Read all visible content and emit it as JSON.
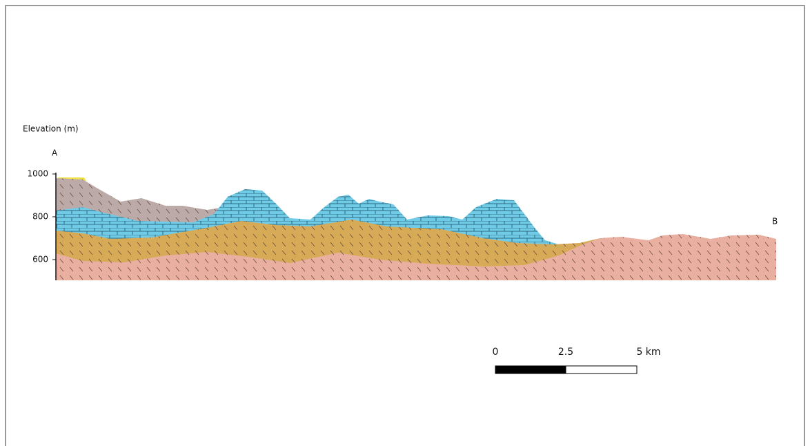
{
  "axis": {
    "label": "Elevation (m)",
    "ticks": [
      "1000",
      "800",
      "600"
    ]
  },
  "section": {
    "start": "A",
    "end": "B"
  },
  "scale_bar": {
    "labels": [
      "0",
      "2.5",
      "5 km"
    ]
  }
}
